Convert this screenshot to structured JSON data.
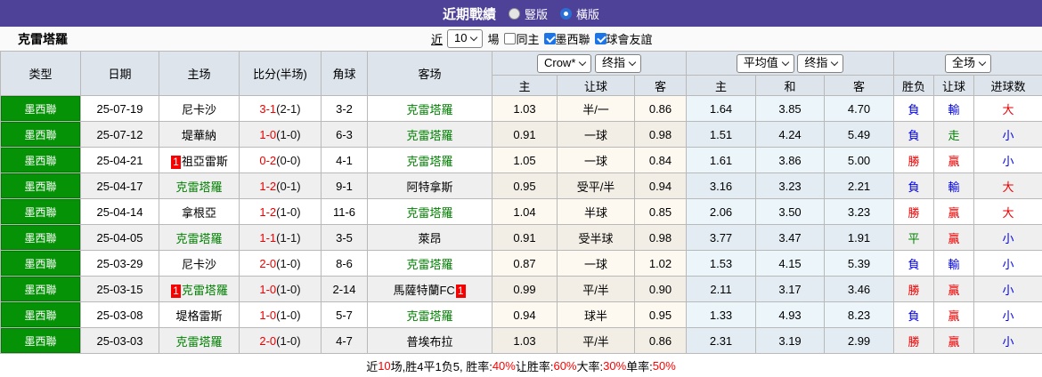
{
  "colors": {
    "accent_purple": "#4d4198",
    "league_green": "#069206",
    "team_green": "#008000",
    "win_red": "#ee0000",
    "lose_blue": "#0000ee",
    "cream_bg": "#fdf9f0",
    "avg_blue_bg": "#ecf5fa",
    "header_bg": "#dde4ec"
  },
  "top_bar": {
    "title": "近期戰績",
    "radio_vertical": "豎版",
    "radio_horizontal": "橫版"
  },
  "toolbar": {
    "team": "克雷塔羅",
    "near_label": "近",
    "matches_count": "10",
    "matches_unit": "場",
    "checkbox_same_home": "同主",
    "checkbox_league": "墨西聯",
    "checkbox_friendly": "球會友誼"
  },
  "table": {
    "left_headers": [
      "类型",
      "日期",
      "主场",
      "比分(半场)",
      "角球",
      "客场"
    ],
    "sub_headers": [
      "主",
      "让球",
      "客",
      "主",
      "和",
      "客",
      "胜负",
      "让球",
      "进球数"
    ],
    "selects": {
      "company": "Crow*",
      "final1": "终指",
      "average": "平均值",
      "final2": "终指",
      "scope": "全场"
    },
    "rows": [
      {
        "league": "墨西聯",
        "date": "25-07-19",
        "home": {
          "name": "尼卡沙"
        },
        "score": [
          "3-1",
          "(2-1)"
        ],
        "corner": "3-2",
        "away": {
          "name": "克雷塔羅",
          "self": true
        },
        "odds": [
          "1.03",
          "半/一",
          "0.86"
        ],
        "avg": [
          "1.64",
          "3.85",
          "4.70"
        ],
        "res": [
          [
            "負",
            "b"
          ],
          [
            "輸",
            "b"
          ],
          [
            "大",
            "r"
          ]
        ]
      },
      {
        "league": "墨西聯",
        "date": "25-07-12",
        "home": {
          "name": "堤華納"
        },
        "score": [
          "1-0",
          "(1-0)"
        ],
        "corner": "6-3",
        "away": {
          "name": "克雷塔羅",
          "self": true
        },
        "odds": [
          "0.91",
          "一球",
          "0.98"
        ],
        "avg": [
          "1.51",
          "4.24",
          "5.49"
        ],
        "res": [
          [
            "負",
            "b"
          ],
          [
            "走",
            "g"
          ],
          [
            "小",
            "b"
          ]
        ]
      },
      {
        "league": "墨西聯",
        "date": "25-04-21",
        "home": {
          "name": "祖亞雷斯",
          "rank": "1",
          "rank_pos": "before"
        },
        "score": [
          "0-2",
          "(0-0)"
        ],
        "corner": "4-1",
        "away": {
          "name": "克雷塔羅",
          "self": true
        },
        "odds": [
          "1.05",
          "一球",
          "0.84"
        ],
        "avg": [
          "1.61",
          "3.86",
          "5.00"
        ],
        "res": [
          [
            "勝",
            "r"
          ],
          [
            "贏",
            "r"
          ],
          [
            "小",
            "b"
          ]
        ]
      },
      {
        "league": "墨西聯",
        "date": "25-04-17",
        "home": {
          "name": "克雷塔羅",
          "self": true
        },
        "score": [
          "1-2",
          "(0-1)"
        ],
        "corner": "9-1",
        "away": {
          "name": "阿特拿斯"
        },
        "odds": [
          "0.95",
          "受平/半",
          "0.94"
        ],
        "avg": [
          "3.16",
          "3.23",
          "2.21"
        ],
        "res": [
          [
            "負",
            "b"
          ],
          [
            "輸",
            "b"
          ],
          [
            "大",
            "r"
          ]
        ]
      },
      {
        "league": "墨西聯",
        "date": "25-04-14",
        "home": {
          "name": "拿根亞"
        },
        "score": [
          "1-2",
          "(1-0)"
        ],
        "corner": "11-6",
        "away": {
          "name": "克雷塔羅",
          "self": true
        },
        "odds": [
          "1.04",
          "半球",
          "0.85"
        ],
        "avg": [
          "2.06",
          "3.50",
          "3.23"
        ],
        "res": [
          [
            "勝",
            "r"
          ],
          [
            "贏",
            "r"
          ],
          [
            "大",
            "r"
          ]
        ]
      },
      {
        "league": "墨西聯",
        "date": "25-04-05",
        "home": {
          "name": "克雷塔羅",
          "self": true
        },
        "score": [
          "1-1",
          "(1-1)"
        ],
        "corner": "3-5",
        "away": {
          "name": "萊昂"
        },
        "odds": [
          "0.91",
          "受半球",
          "0.98"
        ],
        "avg": [
          "3.77",
          "3.47",
          "1.91"
        ],
        "res": [
          [
            "平",
            "g"
          ],
          [
            "贏",
            "r"
          ],
          [
            "小",
            "b"
          ]
        ]
      },
      {
        "league": "墨西聯",
        "date": "25-03-29",
        "home": {
          "name": "尼卡沙"
        },
        "score": [
          "2-0",
          "(1-0)"
        ],
        "corner": "8-6",
        "away": {
          "name": "克雷塔羅",
          "self": true
        },
        "odds": [
          "0.87",
          "一球",
          "1.02"
        ],
        "avg": [
          "1.53",
          "4.15",
          "5.39"
        ],
        "res": [
          [
            "負",
            "b"
          ],
          [
            "輸",
            "b"
          ],
          [
            "小",
            "b"
          ]
        ]
      },
      {
        "league": "墨西聯",
        "date": "25-03-15",
        "home": {
          "name": "克雷塔羅",
          "self": true,
          "rank": "1",
          "rank_pos": "before"
        },
        "score": [
          "1-0",
          "(1-0)"
        ],
        "corner": "2-14",
        "away": {
          "name": "馬薩特蘭FC",
          "rank": "1",
          "rank_pos": "after"
        },
        "odds": [
          "0.99",
          "平/半",
          "0.90"
        ],
        "avg": [
          "2.11",
          "3.17",
          "3.46"
        ],
        "res": [
          [
            "勝",
            "r"
          ],
          [
            "贏",
            "r"
          ],
          [
            "小",
            "b"
          ]
        ]
      },
      {
        "league": "墨西聯",
        "date": "25-03-08",
        "home": {
          "name": "堤格雷斯"
        },
        "score": [
          "1-0",
          "(1-0)"
        ],
        "corner": "5-7",
        "away": {
          "name": "克雷塔羅",
          "self": true
        },
        "odds": [
          "0.94",
          "球半",
          "0.95"
        ],
        "avg": [
          "1.33",
          "4.93",
          "8.23"
        ],
        "res": [
          [
            "負",
            "b"
          ],
          [
            "贏",
            "r"
          ],
          [
            "小",
            "b"
          ]
        ]
      },
      {
        "league": "墨西聯",
        "date": "25-03-03",
        "home": {
          "name": "克雷塔羅",
          "self": true
        },
        "score": [
          "2-0",
          "(1-0)"
        ],
        "corner": "4-7",
        "away": {
          "name": "普埃布拉"
        },
        "odds": [
          "1.03",
          "平/半",
          "0.86"
        ],
        "avg": [
          "2.31",
          "3.19",
          "2.99"
        ],
        "res": [
          [
            "勝",
            "r"
          ],
          [
            "贏",
            "r"
          ],
          [
            "小",
            "b"
          ]
        ]
      }
    ]
  },
  "summary": {
    "segments": [
      {
        "text": "近",
        "red": false
      },
      {
        "text": "10",
        "red": true
      },
      {
        "text": "场,胜4平1负5, 胜率:",
        "red": false
      },
      {
        "text": "40%",
        "red": true
      },
      {
        "text": " 让胜率:",
        "red": false
      },
      {
        "text": "60%",
        "red": true
      },
      {
        "text": " 大率:",
        "red": false
      },
      {
        "text": "30%",
        "red": true
      },
      {
        "text": " 单率:",
        "red": false
      },
      {
        "text": "50%",
        "red": true
      }
    ]
  }
}
